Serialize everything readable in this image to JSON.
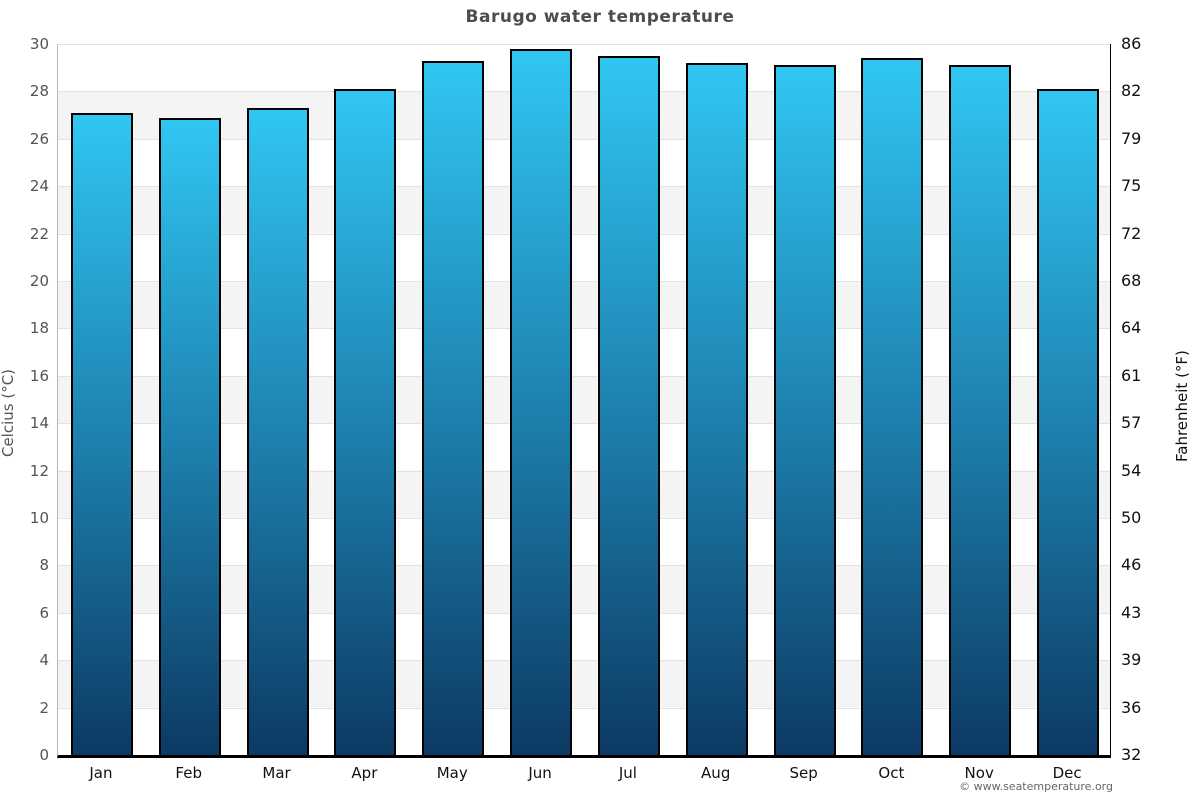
{
  "title": "Barugo water temperature",
  "footer": "© www.seatemperature.org",
  "chart_data": {
    "type": "bar",
    "title": "Barugo water temperature",
    "categories": [
      "Jan",
      "Feb",
      "Mar",
      "Apr",
      "May",
      "Jun",
      "Jul",
      "Aug",
      "Sep",
      "Oct",
      "Nov",
      "Dec"
    ],
    "values": [
      27.1,
      26.9,
      27.3,
      28.1,
      29.3,
      29.8,
      29.5,
      29.2,
      29.1,
      29.4,
      29.1,
      28.1
    ],
    "unit": "°C",
    "ylabel_left": "Celcius (°C)",
    "ylabel_right": "Fahrenheit (°F)",
    "ylim": [
      0,
      30
    ],
    "ytick_step": 2,
    "yticks_left": [
      30,
      28,
      26,
      24,
      22,
      20,
      18,
      16,
      14,
      12,
      10,
      8,
      6,
      4,
      2,
      0
    ],
    "yticks_right": [
      86,
      82,
      79,
      75,
      72,
      68,
      64,
      61,
      57,
      54,
      50,
      46,
      43,
      39,
      36,
      32
    ],
    "grid": true,
    "legend": false,
    "colors": {
      "bar_gradient_top": "#31c6f2",
      "bar_gradient_mid": "#1d7fad",
      "bar_gradient_bottom": "#0c3a63",
      "bar_border": "#000000",
      "band_gray": "#f4f4f4",
      "band_white": "#ffffff",
      "gridline": "#e2e2e2",
      "title_text": "#4d4d4d",
      "left_tick_text": "#545454",
      "right_tick_text": "#111111"
    }
  }
}
